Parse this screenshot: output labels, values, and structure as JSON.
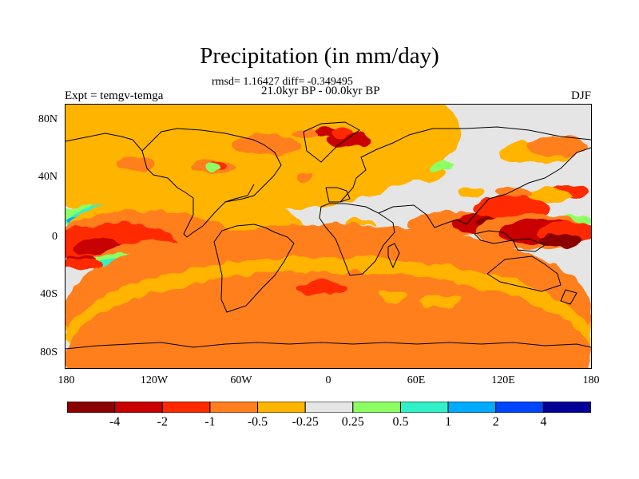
{
  "title": "Precipitation (in mm/day)",
  "subtitle_stats": "rmsd= 1.16427 diff= -0.349495",
  "subtitle_period": "21.0kyr BP - 00.0kyr BP",
  "left_title": "Expt = temgv-temga",
  "right_title": "DJF",
  "lat_labels": [
    "80N",
    "40N",
    "0",
    "40S",
    "80S"
  ],
  "lon_labels": [
    "180",
    "120W",
    "60W",
    "0",
    "60E",
    "120E",
    "180"
  ],
  "colorbar": {
    "colors": [
      "#8b0000",
      "#c80000",
      "#ff2a00",
      "#ff7f1e",
      "#ffb400",
      "#e5e5e5",
      "#8cff64",
      "#32f0c8",
      "#00aaff",
      "#0046ff",
      "#000096"
    ],
    "labels": [
      "-4",
      "-2",
      "-1",
      "-0.5",
      "-0.25",
      "0.25",
      "0.5",
      "1",
      "2",
      "4"
    ]
  },
  "chart_data": {
    "type": "heatmap",
    "variable": "Precipitation (in mm/day)",
    "experiment": "temgv-temga",
    "season": "DJF",
    "period": "21.0kyr BP - 00.0kyr BP",
    "rmsd": 1.16427,
    "diff": -0.349495,
    "lat_range": [
      -90,
      90
    ],
    "lon_range": [
      -180,
      180
    ],
    "contour_levels": [
      -4,
      -2,
      -1,
      -0.5,
      -0.25,
      0.25,
      0.5,
      1,
      2,
      4
    ]
  }
}
